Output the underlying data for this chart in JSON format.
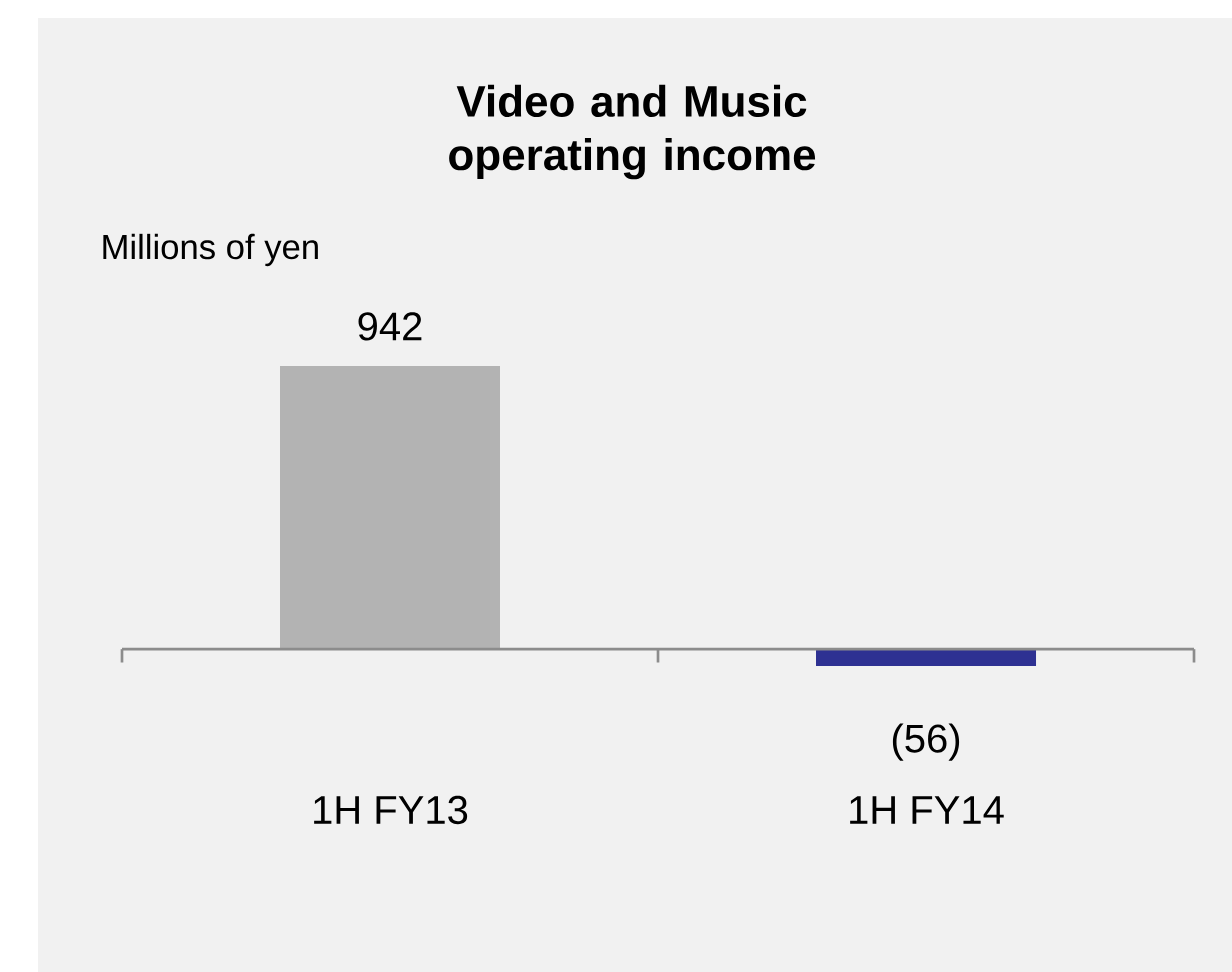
{
  "chart_data": {
    "type": "bar",
    "title": "Video and Music operating income",
    "ylabel": "Millions of yen",
    "categories": [
      "1H FY13",
      "1H FY14"
    ],
    "values": [
      942,
      -56
    ],
    "colors": [
      "#b3b3b3",
      "#2e3192"
    ],
    "value_labels": [
      "942",
      "(56)"
    ]
  }
}
